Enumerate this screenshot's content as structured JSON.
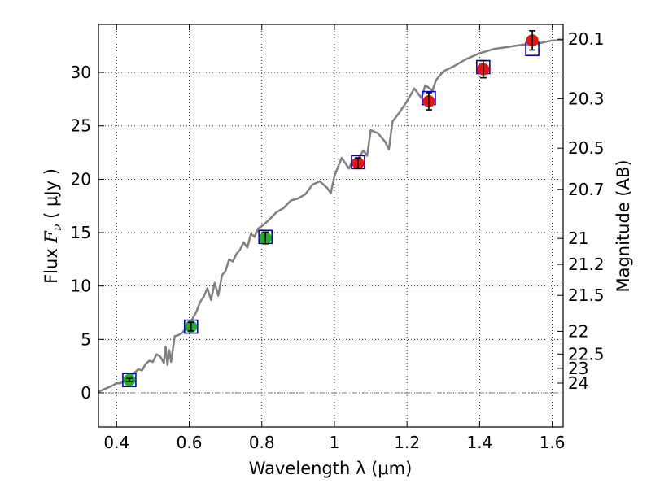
{
  "chart_data": {
    "type": "scatter",
    "xlabel": "Wavelength  λ (μm)",
    "ylabel_parts": {
      "prefix": "Flux  ",
      "var": "F",
      "sub": "ν",
      "unit": "  ( μJy )"
    },
    "ylabel_right": "Magnitude (AB)",
    "xlim": [
      0.35,
      1.63
    ],
    "ylim": [
      -3.2,
      34.5
    ],
    "grid": true,
    "x_ticks": [
      0.4,
      0.6,
      0.8,
      1.0,
      1.2,
      1.4,
      1.6
    ],
    "x_tick_labels": [
      "0.4",
      "0.6",
      "0.8",
      "1",
      "1.2",
      "1.4",
      "1.6"
    ],
    "y_ticks": [
      0,
      5,
      10,
      15,
      20,
      25,
      30
    ],
    "y_tick_labels": [
      "0",
      "5",
      "10",
      "15",
      "20",
      "25",
      "30"
    ],
    "right_axis_magnitudes": [
      20.1,
      20.3,
      20.5,
      20.7,
      21,
      21.2,
      21.5,
      22,
      22.5,
      23,
      24
    ],
    "right_axis_labels": [
      "20.1",
      "20.3",
      "20.5",
      "20.7",
      "21",
      "21.2",
      "21.5",
      "22",
      "22.5",
      "23",
      "24"
    ],
    "model_spectrum": {
      "color": "#808080",
      "x": [
        0.35,
        0.37,
        0.39,
        0.4,
        0.41,
        0.42,
        0.43,
        0.44,
        0.45,
        0.46,
        0.47,
        0.48,
        0.49,
        0.5,
        0.51,
        0.52,
        0.53,
        0.535,
        0.54,
        0.545,
        0.55,
        0.56,
        0.57,
        0.58,
        0.59,
        0.6,
        0.61,
        0.62,
        0.63,
        0.64,
        0.65,
        0.66,
        0.67,
        0.68,
        0.69,
        0.7,
        0.71,
        0.72,
        0.73,
        0.74,
        0.75,
        0.76,
        0.77,
        0.78,
        0.79,
        0.8,
        0.82,
        0.84,
        0.86,
        0.88,
        0.9,
        0.92,
        0.94,
        0.96,
        0.98,
        0.99,
        1.0,
        1.02,
        1.03,
        1.04,
        1.05,
        1.06,
        1.08,
        1.09,
        1.1,
        1.12,
        1.14,
        1.15,
        1.16,
        1.18,
        1.2,
        1.22,
        1.24,
        1.25,
        1.27,
        1.28,
        1.3,
        1.33,
        1.36,
        1.38,
        1.4,
        1.44,
        1.48,
        1.52,
        1.56,
        1.6,
        1.63
      ],
      "y": [
        0.1,
        0.4,
        0.7,
        0.9,
        0.9,
        1.1,
        1.4,
        1.5,
        1.9,
        2.2,
        2.1,
        2.7,
        3.0,
        2.9,
        3.6,
        3.4,
        2.8,
        4.3,
        2.6,
        4.0,
        2.9,
        5.3,
        5.4,
        5.6,
        6.0,
        6.3,
        7.0,
        7.6,
        8.5,
        9.0,
        9.8,
        8.7,
        10.3,
        9.1,
        11.0,
        11.4,
        12.5,
        12.3,
        13.0,
        13.4,
        14.1,
        13.6,
        14.9,
        14.6,
        15.4,
        15.6,
        16.2,
        16.9,
        17.3,
        18.0,
        18.2,
        18.6,
        19.5,
        19.8,
        19.2,
        18.7,
        20.3,
        22.0,
        21.5,
        21.0,
        21.8,
        21.6,
        22.7,
        22.2,
        24.6,
        24.3,
        23.5,
        22.8,
        25.4,
        26.3,
        27.3,
        28.5,
        27.6,
        28.8,
        28.3,
        29.3,
        30.1,
        30.6,
        31.2,
        31.5,
        31.8,
        32.2,
        32.4,
        32.6,
        32.7,
        33.0,
        33.0
      ]
    },
    "series": [
      {
        "name": "model_boxes",
        "marker": "square",
        "color": "#0000cc",
        "x": [
          0.435,
          0.605,
          0.81,
          1.065,
          1.26,
          1.41,
          1.545
        ],
        "y": [
          1.2,
          6.2,
          14.6,
          21.6,
          27.6,
          30.5,
          32.2
        ]
      },
      {
        "name": "observed_green",
        "marker": "circle",
        "color": "#22b022",
        "x": [
          0.435,
          0.605,
          0.81
        ],
        "y": [
          1.2,
          6.2,
          14.5
        ],
        "yerr": [
          0.15,
          0.4,
          0.55
        ]
      },
      {
        "name": "observed_red",
        "marker": "circle",
        "color": "#ee1111",
        "x": [
          1.065,
          1.26,
          1.41,
          1.545
        ],
        "y": [
          21.5,
          27.3,
          30.3,
          33.0
        ],
        "yerr": [
          0.5,
          0.8,
          0.8,
          0.9
        ]
      }
    ]
  }
}
